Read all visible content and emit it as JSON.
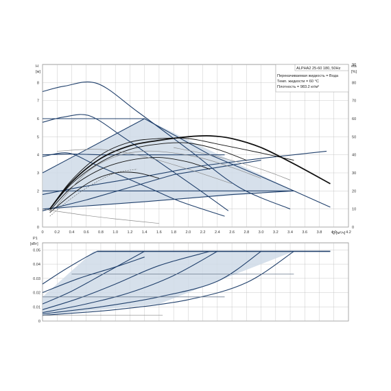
{
  "chart_data": [
    {
      "type": "line",
      "panel": "head",
      "ylabel_top": "H",
      "ylabel_unit": "[м]",
      "y2label_top": "eta",
      "y2label_unit": "[%]",
      "xlabel": "Q [м³/ч]",
      "xlim": [
        0,
        4.2
      ],
      "ylim": [
        0,
        9
      ],
      "y2lim": [
        0,
        90
      ],
      "xticks": [
        "0",
        "0.2",
        "0.4",
        "0.6",
        "0.8",
        "1.0",
        "1.2",
        "1.4",
        "1.6",
        "1.8",
        "2.0",
        "2.2",
        "2.4",
        "2.6",
        "2.8",
        "3.0",
        "3.2",
        "3.4",
        "3.6",
        "3.8",
        "4.0",
        "4.2"
      ],
      "yticks": [
        "0",
        "1",
        "2",
        "3",
        "4",
        "5",
        "6",
        "7",
        "8"
      ],
      "y2ticks": [
        "0",
        "10",
        "20",
        "30",
        "40",
        "50",
        "60",
        "70",
        "80",
        "90"
      ],
      "grid": true,
      "info_box": {
        "title": "ALPHA2 25-60 180, 50Hz",
        "lines": [
          "Перекачиваемая жидкость = Вода",
          "Темп. жидкости = 60 °C",
          "Плотность = 983.2 кг/м³"
        ]
      },
      "colors": {
        "curve": "#1f3f6b",
        "fill": "#cfdbe7",
        "eta": "#111111",
        "grid": "#bbbbbb"
      },
      "shaded_region": [
        [
          0,
          1.0
        ],
        [
          0,
          3.0
        ],
        [
          1.4,
          6.0
        ],
        [
          3.45,
          2.0
        ],
        [
          0,
          1.0
        ]
      ],
      "series": [
        {
          "role": "h_max",
          "x": [
            0,
            0.3,
            0.75,
            1.3,
            2.0,
            2.7,
            3.4
          ],
          "values": [
            7.5,
            7.8,
            7.95,
            6.4,
            4.3,
            2.2,
            1.0
          ]
        },
        {
          "role": "h_const_6",
          "x": [
            0,
            0.6,
            1.0,
            1.4
          ],
          "values": [
            6.0,
            6.0,
            6.0,
            6.0
          ]
        },
        {
          "role": "h_mid",
          "x": [
            0,
            0.3,
            0.65,
            1.1,
            1.6,
            2.1,
            2.55
          ],
          "values": [
            5.8,
            6.1,
            6.15,
            5.0,
            3.6,
            2.2,
            0.9
          ]
        },
        {
          "role": "h_const_4",
          "x": [
            0,
            0.4,
            0.8,
            1.4,
            2.0,
            2.5
          ],
          "values": [
            4.0,
            4.05,
            4.0,
            4.0,
            4.0,
            4.0
          ]
        },
        {
          "role": "h_low",
          "x": [
            0,
            0.35,
            0.7,
            1.1,
            1.5,
            1.9,
            2.5
          ],
          "values": [
            3.9,
            4.1,
            3.5,
            2.8,
            2.1,
            1.4,
            0.6
          ]
        },
        {
          "role": "h_const_2",
          "x": [
            0,
            1.0,
            2.0,
            3.45
          ],
          "values": [
            2.0,
            2.0,
            2.0,
            2.0
          ]
        },
        {
          "role": "sys_1",
          "x": [
            0,
            0.7,
            1.4,
            2.0,
            2.6,
            3.45,
            3.95
          ],
          "values": [
            1.0,
            1.2,
            1.4,
            1.6,
            1.8,
            2.0,
            1.1
          ]
        },
        {
          "role": "sys_2",
          "x": [
            0,
            0.5,
            1.4,
            2.2,
            3.0,
            3.9
          ],
          "values": [
            1.8,
            2.2,
            2.8,
            3.4,
            3.8,
            4.2
          ]
        },
        {
          "role": "sys_3",
          "x": [
            0,
            1.4,
            2.3,
            3.0,
            3.45
          ],
          "values": [
            3.0,
            6.0,
            4.0,
            2.8,
            2.0
          ]
        },
        {
          "role": "sys_4",
          "x": [
            0,
            0.6,
            1.2,
            1.8,
            2.4,
            3.0
          ],
          "values": [
            0.9,
            1.5,
            2.2,
            2.9,
            3.3,
            3.7
          ]
        },
        {
          "role": "eta_1",
          "axis": "y2",
          "x": [
            0.1,
            0.4,
            0.8,
            1.2,
            1.6,
            2.0,
            2.3,
            2.6,
            3.0,
            3.45,
            3.95
          ],
          "values": [
            10,
            25,
            38,
            45,
            48,
            50,
            50.5,
            49,
            44,
            35,
            24
          ]
        },
        {
          "role": "eta_2",
          "axis": "y2",
          "x": [
            0.1,
            0.4,
            0.8,
            1.2,
            1.6,
            2.0,
            2.4,
            2.8
          ],
          "values": [
            10,
            24,
            36,
            43,
            46,
            46.5,
            43,
            37
          ]
        },
        {
          "role": "eta_3",
          "axis": "y2",
          "x": [
            0.1,
            0.4,
            0.8,
            1.2,
            1.6,
            2.0,
            2.3
          ],
          "values": [
            9,
            22,
            32,
            37,
            38.5,
            36,
            32
          ]
        },
        {
          "role": "eta_4",
          "axis": "y2",
          "x": [
            0.1,
            0.4,
            0.7,
            1.0,
            1.3,
            1.6
          ],
          "values": [
            8,
            18,
            26,
            30,
            30,
            27
          ]
        },
        {
          "role": "eta_5",
          "axis": "y2",
          "x": [
            0.1,
            0.4,
            0.8,
            1.2,
            1.6,
            2.0,
            2.4,
            3.0,
            3.45
          ],
          "values": [
            10,
            26,
            40,
            47,
            49,
            49,
            46,
            41,
            37
          ]
        },
        {
          "role": "eta_grey",
          "axis": "y2",
          "x": [
            0.2,
            0.6,
            1.0,
            1.4,
            1.8,
            2.2,
            2.6,
            3.0
          ],
          "values": [
            12,
            30,
            39,
            42,
            41,
            38,
            33,
            27
          ]
        },
        {
          "role": "eta_dash",
          "axis": "y2",
          "x": [
            0.1,
            0.4,
            0.7,
            1.0,
            1.3
          ],
          "values": [
            6,
            16,
            24,
            30,
            32
          ]
        },
        {
          "role": "grey_low",
          "x": [
            0,
            0.5,
            1.0,
            1.6
          ],
          "values": [
            1.0,
            0.7,
            0.45,
            0.2
          ]
        },
        {
          "role": "grey_h2",
          "x": [
            0.2,
            0.8,
            1.4,
            2.0,
            2.6
          ],
          "values": [
            4.2,
            4.3,
            3.9,
            3.2,
            2.4
          ]
        },
        {
          "role": "grey_h3",
          "x": [
            1.8,
            2.4,
            3.0,
            3.4
          ],
          "values": [
            4.4,
            3.9,
            3.2,
            2.6
          ]
        }
      ]
    },
    {
      "type": "line",
      "panel": "power",
      "ylabel_top": "P1",
      "ylabel_unit": "[кВт]",
      "xlim": [
        0,
        4.2
      ],
      "ylim": [
        0,
        0.055
      ],
      "yticks": [
        "0",
        "0.01",
        "0.02",
        "0.03",
        "0.04",
        "0.05"
      ],
      "grid": true,
      "shaded_region": [
        [
          0,
          0.004
        ],
        [
          0,
          0.017
        ],
        [
          0.7,
          0.049
        ],
        [
          3.45,
          0.049
        ],
        [
          3.45,
          0.049
        ],
        [
          1.6,
          0.012
        ],
        [
          0,
          0.004
        ]
      ],
      "series": [
        {
          "role": "p_max_flat",
          "x": [
            0.75,
            2.0,
            3.0,
            3.95
          ],
          "values": [
            0.049,
            0.049,
            0.049,
            0.049
          ]
        },
        {
          "role": "p_0",
          "x": [
            0,
            0.3,
            0.6,
            0.75
          ],
          "values": [
            0.026,
            0.036,
            0.045,
            0.049
          ]
        },
        {
          "role": "p_1",
          "x": [
            0,
            0.4,
            0.9,
            1.4
          ],
          "values": [
            0.012,
            0.021,
            0.035,
            0.049
          ]
        },
        {
          "role": "p_2",
          "x": [
            0,
            0.5,
            1.0,
            1.6,
            2.3
          ],
          "values": [
            0.008,
            0.016,
            0.026,
            0.039,
            0.049
          ]
        },
        {
          "role": "p_3",
          "x": [
            0,
            0.6,
            1.2,
            1.8,
            2.4
          ],
          "values": [
            0.006,
            0.012,
            0.02,
            0.032,
            0.049
          ]
        },
        {
          "role": "p_4",
          "x": [
            0,
            0.8,
            1.6,
            2.4,
            3.0
          ],
          "values": [
            0.005,
            0.01,
            0.017,
            0.028,
            0.049
          ]
        },
        {
          "role": "p_5",
          "x": [
            0,
            1.0,
            2.0,
            2.8,
            3.45
          ],
          "values": [
            0.004,
            0.008,
            0.015,
            0.027,
            0.049
          ]
        },
        {
          "role": "p_h_33",
          "x": [
            0.4,
            1.4,
            2.5,
            3.45
          ],
          "values": [
            0.033,
            0.033,
            0.033,
            0.033
          ]
        },
        {
          "role": "p_h_17",
          "x": [
            0,
            1.2,
            2.5
          ],
          "values": [
            0.017,
            0.017,
            0.017
          ]
        },
        {
          "role": "p_low",
          "x": [
            0,
            0.8,
            1.65
          ],
          "values": [
            0.004,
            0.004,
            0.004
          ]
        },
        {
          "role": "p_mid",
          "x": [
            0,
            0.5,
            1.0,
            1.4
          ],
          "values": [
            0.02,
            0.03,
            0.038,
            0.045
          ]
        }
      ]
    }
  ]
}
